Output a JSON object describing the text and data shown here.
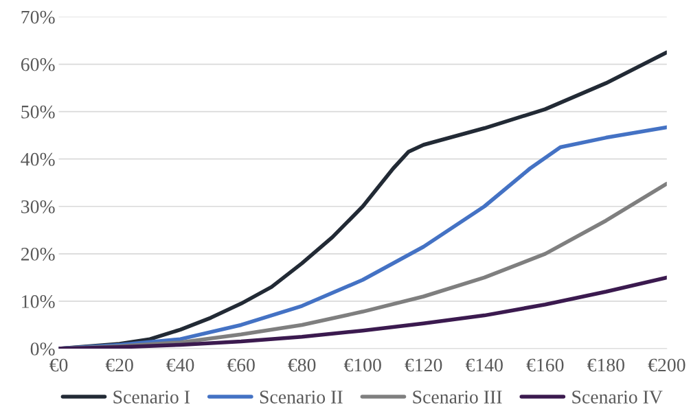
{
  "chart_data": {
    "type": "line",
    "xlim": [
      0,
      200
    ],
    "xticks": [
      {
        "value": 0,
        "label": "€0"
      },
      {
        "value": 20,
        "label": "€20"
      },
      {
        "value": 40,
        "label": "€40"
      },
      {
        "value": 60,
        "label": "€60"
      },
      {
        "value": 80,
        "label": "€80"
      },
      {
        "value": 100,
        "label": "€100"
      },
      {
        "value": 120,
        "label": "€120"
      },
      {
        "value": 140,
        "label": "€140"
      },
      {
        "value": 160,
        "label": "€160"
      },
      {
        "value": 180,
        "label": "€180"
      },
      {
        "value": 200,
        "label": "€200"
      }
    ],
    "ylim": [
      0,
      70
    ],
    "yticks": [
      {
        "value": 0,
        "label": "0%"
      },
      {
        "value": 10,
        "label": "10%"
      },
      {
        "value": 20,
        "label": "20%"
      },
      {
        "value": 30,
        "label": "30%"
      },
      {
        "value": 40,
        "label": "40%"
      },
      {
        "value": 50,
        "label": "50%"
      },
      {
        "value": 60,
        "label": "60%"
      },
      {
        "value": 70,
        "label": "70%"
      }
    ],
    "grid": "y",
    "legend": "bottom",
    "marker": "none",
    "line_style": "solid",
    "series": [
      {
        "name": "Scenario I",
        "color": "#222a35",
        "x": [
          0,
          20,
          30,
          40,
          50,
          60,
          70,
          80,
          90,
          100,
          110,
          115,
          120,
          140,
          160,
          180,
          200
        ],
        "values": [
          0,
          1,
          2,
          4,
          6.5,
          9.5,
          13,
          18,
          23.5,
          30,
          38,
          41.5,
          43,
          46.5,
          50.5,
          56,
          62.5
        ]
      },
      {
        "name": "Scenario II",
        "color": "#4472c4",
        "x": [
          0,
          20,
          40,
          60,
          80,
          100,
          120,
          140,
          155,
          165,
          180,
          200
        ],
        "values": [
          0,
          0.8,
          2,
          5,
          9,
          14.5,
          21.5,
          30,
          38,
          42.5,
          44.5,
          46.7
        ]
      },
      {
        "name": "Scenario III",
        "color": "#7f7f7f",
        "x": [
          0,
          20,
          40,
          60,
          80,
          100,
          120,
          140,
          160,
          180,
          200
        ],
        "values": [
          0,
          0.5,
          1.3,
          3,
          5,
          7.8,
          11,
          15,
          20,
          27,
          34.8
        ]
      },
      {
        "name": "Scenario IV",
        "color": "#3b1a4f",
        "x": [
          0,
          20,
          40,
          60,
          80,
          100,
          120,
          140,
          160,
          180,
          200
        ],
        "values": [
          0,
          0.3,
          0.8,
          1.5,
          2.5,
          3.8,
          5.3,
          7,
          9.3,
          12,
          15
        ]
      }
    ]
  }
}
